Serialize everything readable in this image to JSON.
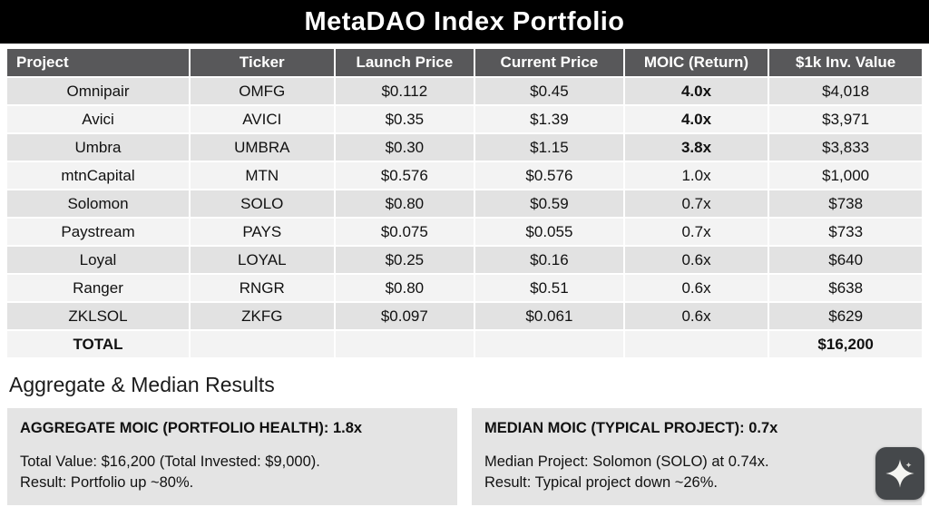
{
  "header": {
    "title": "MetaDAO Index Portfolio"
  },
  "chart_data": {
    "type": "table",
    "title": "MetaDAO Index Portfolio",
    "columns": [
      "Project",
      "Ticker",
      "Launch Price",
      "Current Price",
      "MOIC (Return)",
      "$1k Inv. Value"
    ],
    "rows": [
      [
        "Omnipair",
        "OMFG",
        "$0.112",
        "$0.45",
        "4.0x",
        "$4,018"
      ],
      [
        "Avici",
        "AVICI",
        "$0.35",
        "$1.39",
        "4.0x",
        "$3,971"
      ],
      [
        "Umbra",
        "UMBRA",
        "$0.30",
        "$1.15",
        "3.8x",
        "$3,833"
      ],
      [
        "mtnCapital",
        "MTN",
        "$0.576",
        "$0.576",
        "1.0x",
        "$1,000"
      ],
      [
        "Solomon",
        "SOLO",
        "$0.80",
        "$0.59",
        "0.7x",
        "$738"
      ],
      [
        "Paystream",
        "PAYS",
        "$0.075",
        "$0.055",
        "0.7x",
        "$733"
      ],
      [
        "Loyal",
        "LOYAL",
        "$0.25",
        "$0.16",
        "0.6x",
        "$640"
      ],
      [
        "Ranger",
        "RNGR",
        "$0.80",
        "$0.51",
        "0.6x",
        "$638"
      ],
      [
        "ZKLSOL",
        "ZKFG",
        "$0.097",
        "$0.061",
        "0.6x",
        "$629"
      ]
    ],
    "bold_moic_rows": [
      0,
      1,
      2
    ],
    "total_row": {
      "label": "TOTAL",
      "value": "$16,200"
    }
  },
  "results": {
    "heading": "Aggregate & Median Results",
    "aggregate": {
      "title": "AGGREGATE MOIC (PORTFOLIO HEALTH): 1.8x",
      "line1": "Total Value: $16,200 (Total Invested: $9,000).",
      "line2": "Result: Portfolio up ~80%."
    },
    "median": {
      "title": "MEDIAN MOIC (TYPICAL PROJECT): 0.7x",
      "line1": "Median Project: Solomon (SOLO) at 0.74x.",
      "line2": "Result: Typical project down ~26%."
    }
  },
  "colors": {
    "header_bg": "#000000",
    "table_header_bg": "#58585a",
    "row_dark": "#e2e2e2",
    "row_light": "#f3f3f3",
    "box_bg": "#e4e4e4",
    "badge_bg": "#45484b"
  }
}
